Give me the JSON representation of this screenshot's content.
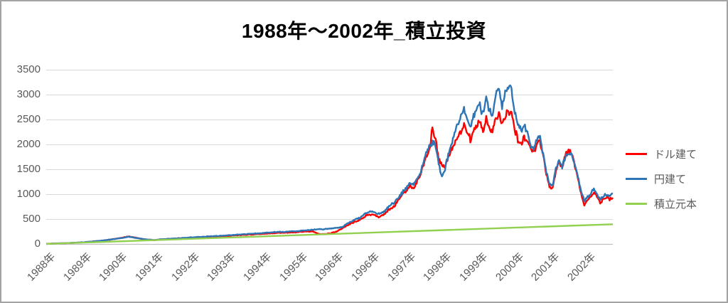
{
  "title": "1988年〜2002年_積立投資",
  "colors": {
    "dollar_series": "#ff0000",
    "yen_series": "#2e75b6",
    "principal_series": "#92d050",
    "gridline": "#d9d9d9",
    "axis_line": "#bfbfbf",
    "tick_label": "#595959",
    "frame_border": "#a3a3a3",
    "title_text": "#000000"
  },
  "y_axis": {
    "tick_labels": [
      "3500",
      "3000",
      "2500",
      "2000",
      "1500",
      "1000",
      "500",
      "0"
    ]
  },
  "x_axis": {
    "tick_labels": [
      "1988年",
      "1989年",
      "1990年",
      "1991年",
      "1992年",
      "1993年",
      "1994年",
      "1995年",
      "1996年",
      "1996年",
      "1997年",
      "1998年",
      "1999年",
      "2000年",
      "2001年",
      "2002年"
    ]
  },
  "legend": {
    "items": [
      {
        "label": "ドル建て",
        "color": "#ff0000"
      },
      {
        "label": "円建て",
        "color": "#2e75b6"
      },
      {
        "label": "積立元本",
        "color": "#92d050"
      }
    ]
  },
  "chart_data": {
    "type": "line",
    "title": "1988年〜2002年_積立投資",
    "x_unit": "month",
    "x_start": "1988-01",
    "x_end": "2002-12",
    "x_tick_labels": [
      "1988年",
      "1989年",
      "1990年",
      "1991年",
      "1992年",
      "1993年",
      "1994年",
      "1995年",
      "1996年",
      "1996年",
      "1997年",
      "1998年",
      "1999年",
      "2000年",
      "2001年",
      "2002年"
    ],
    "ylim": [
      0,
      3500
    ],
    "y_tick_step": 500,
    "grid": "horizontal",
    "legend_position": "right",
    "series": [
      {
        "name": "ドル建て",
        "color": "#ff0000",
        "values": [
          2,
          5,
          8,
          10,
          12,
          14,
          15,
          18,
          21,
          24,
          27,
          30,
          33,
          39,
          45,
          51,
          57,
          62,
          68,
          77,
          86,
          96,
          105,
          115,
          125,
          140,
          150,
          140,
          130,
          116,
          104,
          92,
          87,
          82,
          78,
          84,
          90,
          94,
          97,
          101,
          105,
          108,
          112,
          116,
          120,
          124,
          127,
          131,
          135,
          138,
          141,
          144,
          146,
          149,
          152,
          155,
          159,
          162,
          165,
          169,
          172,
          176,
          180,
          184,
          187,
          191,
          195,
          199,
          203,
          206,
          210,
          214,
          218,
          221,
          224,
          227,
          229,
          232,
          235,
          238,
          242,
          245,
          248,
          252,
          255,
          230,
          205,
          195,
          200,
          208,
          215,
          235,
          260,
          295,
          330,
          365,
          400,
          430,
          455,
          480,
          525,
          570,
          590,
          600,
          570,
          540,
          570,
          600,
          680,
          720,
          760,
          855,
          950,
          1025,
          1100,
          1180,
          1120,
          1235,
          1350,
          1550,
          1750,
          1900,
          2300,
          2100,
          1700,
          1600,
          1550,
          1750,
          1900,
          2000,
          2150,
          2250,
          2400,
          2250,
          2100,
          2300,
          2400,
          2450,
          2250,
          2500,
          2350,
          2250,
          2500,
          2600,
          2400,
          2550,
          2650,
          2600,
          2300,
          2100,
          2000,
          2150,
          2100,
          1900,
          1850,
          2000,
          2050,
          1750,
          1400,
          1150,
          1130,
          1450,
          1650,
          1520,
          1780,
          1865,
          1820,
          1580,
          1330,
          1000,
          775,
          880,
          950,
          1030,
          950,
          815,
          900,
          950,
          900,
          930
        ]
      },
      {
        "name": "円建て",
        "color": "#2e75b6",
        "values": [
          2,
          5,
          8,
          11,
          13,
          14,
          15,
          18,
          22,
          25,
          28,
          32,
          35,
          41,
          47,
          52,
          58,
          64,
          70,
          78,
          87,
          95,
          103,
          112,
          120,
          135,
          148,
          136,
          125,
          115,
          105,
          95,
          90,
          85,
          80,
          85,
          92,
          96,
          100,
          104,
          108,
          112,
          115,
          119,
          123,
          127,
          132,
          136,
          140,
          143,
          147,
          150,
          153,
          157,
          160,
          164,
          168,
          172,
          177,
          181,
          185,
          189,
          193,
          198,
          202,
          206,
          210,
          214,
          218,
          223,
          227,
          231,
          235,
          238,
          242,
          245,
          248,
          252,
          255,
          260,
          265,
          270,
          275,
          280,
          285,
          288,
          292,
          295,
          300,
          305,
          310,
          317,
          323,
          330,
          365,
          400,
          440,
          465,
          495,
          520,
          570,
          620,
          640,
          650,
          625,
          605,
          630,
          660,
          750,
          790,
          830,
          915,
          1000,
          1075,
          1150,
          1250,
          1180,
          1290,
          1400,
          1600,
          1800,
          1950,
          2050,
          1980,
          1600,
          1380,
          1500,
          1800,
          2000,
          2200,
          2400,
          2600,
          2700,
          2500,
          2300,
          2550,
          2700,
          2800,
          2600,
          2950,
          2700,
          2550,
          3000,
          3200,
          2750,
          3050,
          3140,
          3100,
          2650,
          2400,
          2250,
          2400,
          2250,
          2000,
          1900,
          2100,
          2150,
          1800,
          1450,
          1200,
          1175,
          1500,
          1675,
          1550,
          1750,
          1820,
          1800,
          1600,
          1360,
          1050,
          860,
          950,
          1000,
          1105,
          1000,
          890,
          950,
          1000,
          970,
          1010
        ]
      },
      {
        "name": "積立元本",
        "color": "#92d050",
        "linear": {
          "start": 2,
          "end": 396
        }
      }
    ]
  }
}
